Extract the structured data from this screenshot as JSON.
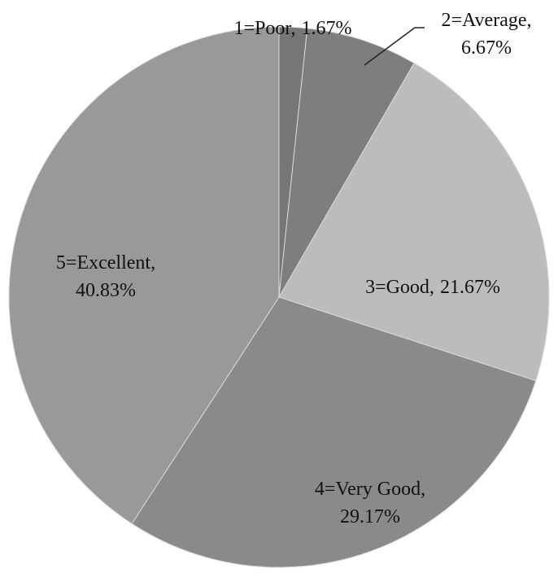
{
  "chart_data": {
    "type": "pie",
    "categories": [
      "1=Poor,",
      "2=Average,",
      "3=Good,",
      "4=Very Good,",
      "5=Excellent,"
    ],
    "values": [
      1.67,
      6.67,
      21.67,
      29.17,
      40.83
    ],
    "value_labels": [
      "1.67%",
      "6.67%",
      "21.67%",
      "29.17%",
      "40.83%"
    ],
    "colors": [
      "#767676",
      "#7e7e7e",
      "#bcbcbc",
      "#8a8a8a",
      "#999999"
    ]
  }
}
